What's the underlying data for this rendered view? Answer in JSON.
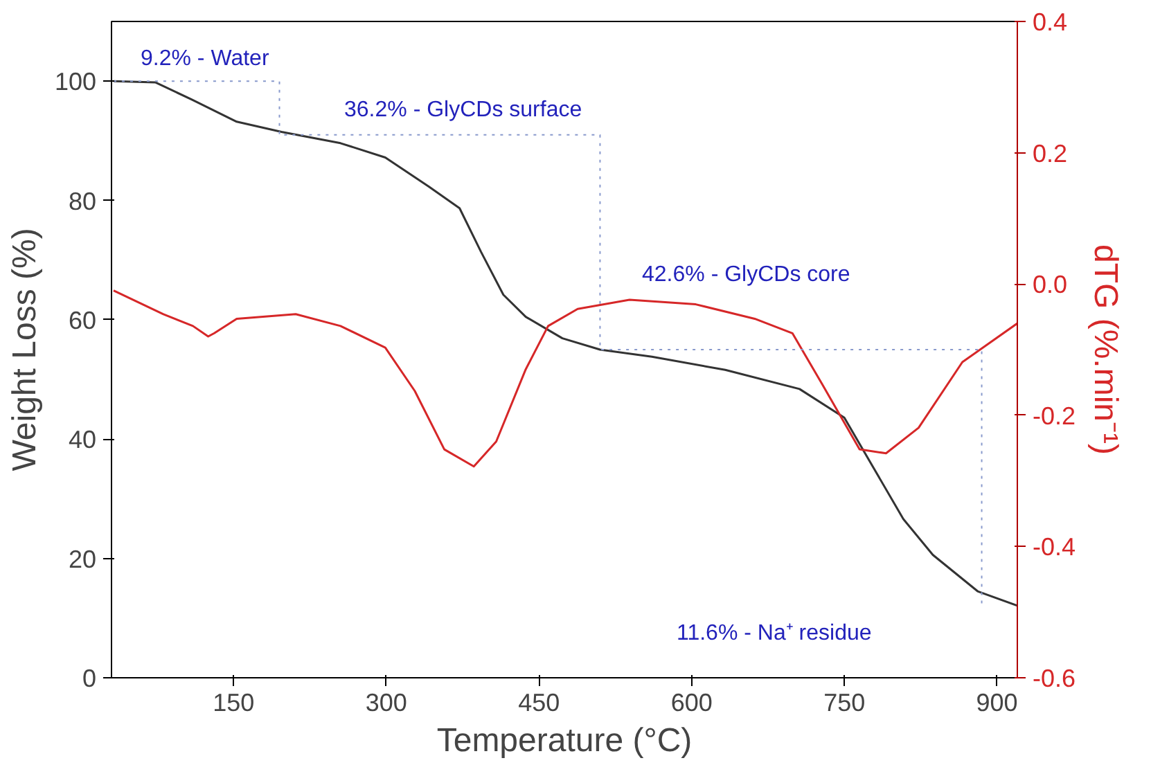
{
  "chart_data": {
    "type": "line",
    "xlabel": "Temperature (°C)",
    "ylabel": "Weight Loss (%)",
    "y2label": "dTG (%.min⁻¹)",
    "xlim": [
      30,
      920
    ],
    "xticks": [
      150,
      300,
      450,
      600,
      750,
      900
    ],
    "ylim": [
      0,
      110
    ],
    "yticks": [
      0,
      20,
      40,
      60,
      80,
      100
    ],
    "y2lim": [
      -0.6,
      0.4
    ],
    "y2ticks": [
      -0.6,
      -0.4,
      -0.2,
      {
        "value": 0,
        "label": "0.0"
      },
      0.2,
      0.4
    ],
    "grid": false,
    "line_style": "solid",
    "marker": "none",
    "series": [
      {
        "color": "#333333",
        "x": [
          32,
          73,
          109,
          153,
          197,
          255,
          299,
          342,
          372,
          393,
          415,
          437,
          473,
          510,
          561,
          633,
          706,
          750,
          779,
          808,
          837,
          881,
          920
        ],
        "values": [
          100,
          99.8,
          96.9,
          93.2,
          91.5,
          89.6,
          87.2,
          82.3,
          78.7,
          71.4,
          64.2,
          60.5,
          56.9,
          55,
          53.8,
          51.6,
          48.4,
          43.6,
          35.1,
          26.6,
          20.6,
          14.5,
          12.1
        ]
      },
      {
        "color": "#d62728",
        "axis": "y2",
        "x": [
          32,
          81,
          110,
          125,
          131,
          153,
          211,
          255,
          299,
          328,
          357,
          386,
          408,
          437,
          459,
          488,
          539,
          604,
          662,
          699,
          728,
          765,
          791,
          823,
          866,
          920
        ],
        "values": [
          -0.01,
          -0.046,
          -0.064,
          -0.08,
          -0.075,
          -0.053,
          -0.046,
          -0.064,
          -0.097,
          -0.163,
          -0.252,
          -0.278,
          -0.24,
          -0.13,
          -0.064,
          -0.038,
          -0.024,
          -0.031,
          -0.053,
          -0.075,
          -0.152,
          -0.252,
          -0.258,
          -0.219,
          -0.119,
          -0.06
        ]
      },
      {
        "color": "#8899cc",
        "line_style": "dotted",
        "x": [
          32,
          195,
          195,
          510,
          510,
          885,
          885
        ],
        "values": [
          100,
          100,
          91,
          91,
          55,
          55,
          12
        ]
      }
    ],
    "annotations": [
      "9.2% - Water",
      "36.2% - GlyCDs surface",
      "42.6% - GlyCDs core",
      "11.6% - Na⁺ residue"
    ]
  }
}
